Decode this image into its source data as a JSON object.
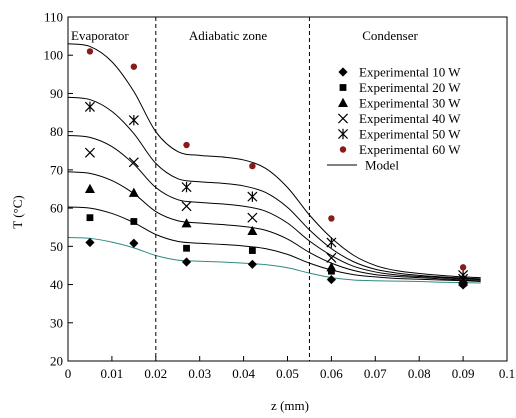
{
  "chart_data": {
    "type": "scatter",
    "title": "",
    "xlabel": "z (mm)",
    "ylabel": "T (°C)",
    "xlim": [
      0,
      0.1
    ],
    "ylim": [
      20,
      110
    ],
    "xticks": [
      0,
      0.01,
      0.02,
      0.03,
      0.04,
      0.05,
      0.06,
      0.07,
      0.08,
      0.09,
      0.1
    ],
    "xtick_labels": [
      "0",
      "0.01",
      "0.02",
      "0.03",
      "0.04",
      "0.05",
      "0.06",
      "0.07",
      "0.08",
      "0.09",
      "0.1"
    ],
    "yticks": [
      20,
      30,
      40,
      50,
      60,
      70,
      80,
      90,
      100,
      110
    ],
    "ytick_labels": [
      "20",
      "30",
      "40",
      "50",
      "60",
      "70",
      "80",
      "90",
      "100",
      "110"
    ],
    "grid": false,
    "legend_position": "top-right",
    "zones": [
      {
        "label": "Evaporator",
        "x_start": 0,
        "x_end": 0.02
      },
      {
        "label": "Adiabatic zone",
        "x_start": 0.02,
        "x_end": 0.055
      },
      {
        "label": "Condenser",
        "x_start": 0.055,
        "x_end": 0.1
      }
    ],
    "zone_boundaries": [
      0.02,
      0.055
    ],
    "experimental_x": [
      0.005,
      0.015,
      0.027,
      0.042,
      0.06,
      0.09
    ],
    "series": [
      {
        "name": "Experimental 10 W",
        "marker": "diamond",
        "color": "#000000",
        "values": [
          51,
          50.8,
          45.9,
          45.3,
          41.3,
          39.9
        ]
      },
      {
        "name": "Experimental 20 W",
        "marker": "square",
        "color": "#000000",
        "values": [
          57.5,
          56.5,
          49.5,
          48.9,
          43.5,
          40.3
        ]
      },
      {
        "name": "Experimental 30 W",
        "marker": "triangle",
        "color": "#000000",
        "values": [
          65,
          64,
          56,
          54,
          44.5,
          40.8
        ]
      },
      {
        "name": "Experimental 40 W",
        "marker": "x",
        "color": "#000000",
        "values": [
          74.5,
          72,
          60.5,
          57.5,
          47,
          41.5
        ]
      },
      {
        "name": "Experimental 50 W",
        "marker": "asterisk",
        "color": "#000000",
        "values": [
          86.5,
          83,
          65.5,
          63,
          51,
          42.5
        ]
      },
      {
        "name": "Experimental 60 W",
        "marker": "circle",
        "color": "#8b1a1a",
        "values": [
          101,
          97,
          76.5,
          71,
          57.3,
          44.5
        ]
      }
    ],
    "model": {
      "name": "Model",
      "color": "#000000",
      "base_color": "#2e8b84",
      "x": [
        0,
        0.005,
        0.01,
        0.015,
        0.02,
        0.025,
        0.03,
        0.035,
        0.04,
        0.045,
        0.05,
        0.055,
        0.06,
        0.065,
        0.07,
        0.075,
        0.08,
        0.085,
        0.09,
        0.094
      ],
      "curves": [
        [
          52.3,
          52.1,
          51.1,
          49.6,
          47.6,
          46.4,
          46.1,
          45.9,
          45.6,
          45.2,
          44.4,
          43.0,
          41.8,
          41.2,
          41.0,
          40.9,
          40.8,
          40.6,
          40.5,
          40.4
        ],
        [
          60.3,
          60.0,
          58.6,
          56.2,
          53.1,
          51.3,
          50.8,
          50.5,
          50.1,
          49.4,
          47.9,
          45.6,
          43.8,
          42.6,
          42.0,
          41.6,
          41.4,
          41.2,
          41.0,
          40.8
        ],
        [
          69.5,
          69.1,
          67.2,
          63.8,
          59.1,
          56.7,
          56.1,
          55.7,
          55.2,
          54.2,
          51.9,
          48.4,
          45.6,
          43.7,
          42.6,
          42.1,
          41.8,
          41.5,
          41.2,
          41.1
        ],
        [
          79.0,
          78.5,
          76.1,
          71.5,
          65.4,
          62.2,
          61.5,
          61.1,
          60.5,
          59.2,
          56.1,
          51.4,
          47.6,
          44.8,
          43.3,
          42.5,
          42.1,
          41.8,
          41.5,
          41.3
        ],
        [
          89.0,
          88.4,
          85.3,
          79.5,
          71.7,
          67.7,
          66.9,
          66.5,
          65.8,
          64.1,
          60.2,
          54.3,
          49.4,
          46.0,
          44.0,
          43.0,
          42.4,
          42.0,
          41.7,
          41.5
        ],
        [
          103.0,
          102.3,
          98.3,
          90.5,
          80.0,
          74.8,
          73.8,
          73.4,
          72.6,
          70.4,
          65.4,
          58.2,
          52.2,
          47.7,
          45.0,
          43.6,
          42.9,
          42.4,
          42.0,
          41.8
        ]
      ]
    }
  }
}
